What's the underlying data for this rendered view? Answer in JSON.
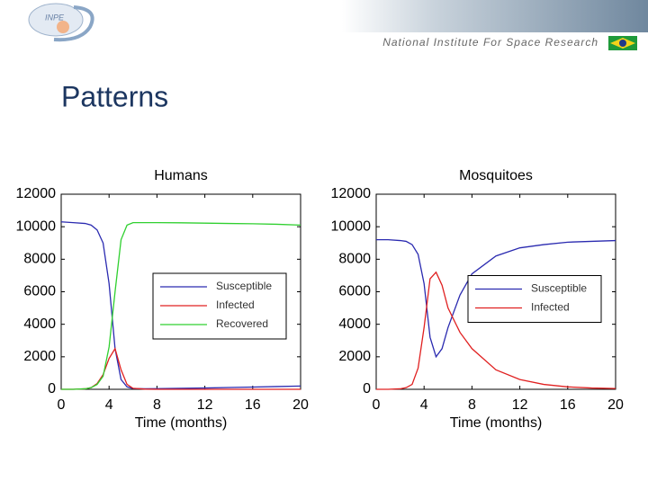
{
  "header": {
    "logo_text": "INPE",
    "institute": "National Institute For Space Research",
    "title": "Patterns"
  },
  "chart_data": [
    {
      "type": "line",
      "title": "Humans",
      "x_label": "Time (months)",
      "x": [
        0,
        1,
        2,
        2.5,
        3,
        3.5,
        4,
        4.5,
        5,
        5.5,
        6,
        7,
        8,
        10,
        12,
        14,
        16,
        18,
        20
      ],
      "series": [
        {
          "name": "Susceptible",
          "color": "#2a2ab0",
          "values": [
            10300,
            10250,
            10200,
            10100,
            9800,
            9000,
            6500,
            2500,
            600,
            150,
            50,
            30,
            40,
            60,
            80,
            110,
            140,
            170,
            200
          ]
        },
        {
          "name": "Infected",
          "color": "#e02020",
          "values": [
            0,
            0,
            30,
            100,
            350,
            900,
            1900,
            2500,
            1200,
            300,
            60,
            10,
            0,
            0,
            0,
            0,
            0,
            0,
            0
          ]
        },
        {
          "name": "Recovered",
          "color": "#30d030",
          "values": [
            0,
            0,
            30,
            100,
            300,
            800,
            2600,
            6000,
            9200,
            10100,
            10250,
            10250,
            10250,
            10240,
            10220,
            10200,
            10180,
            10150,
            10100
          ]
        }
      ],
      "xlim": [
        0,
        20
      ],
      "xticks": [
        0,
        4,
        8,
        12,
        16,
        20
      ],
      "ylim": [
        0,
        12000
      ],
      "yticks": [
        0,
        2000,
        4000,
        6000,
        8000,
        10000,
        12000
      ],
      "grid": false,
      "legend": "lower right"
    },
    {
      "type": "line",
      "title": "Mosquitoes",
      "x_label": "Time (months)",
      "x": [
        0,
        1,
        2,
        2.5,
        3,
        3.5,
        4,
        4.5,
        5,
        5.5,
        6,
        7,
        8,
        10,
        12,
        14,
        16,
        18,
        20
      ],
      "series": [
        {
          "name": "Susceptible",
          "color": "#2a2ab0",
          "values": [
            9200,
            9200,
            9150,
            9100,
            8900,
            8300,
            6500,
            3200,
            2000,
            2500,
            3800,
            5800,
            7100,
            8200,
            8700,
            8900,
            9050,
            9100,
            9150
          ]
        },
        {
          "name": "Infected",
          "color": "#e02020",
          "values": [
            0,
            0,
            30,
            100,
            300,
            1300,
            3800,
            6800,
            7200,
            6400,
            5000,
            3500,
            2500,
            1200,
            600,
            300,
            150,
            80,
            50
          ]
        }
      ],
      "xlim": [
        0,
        20
      ],
      "xticks": [
        0,
        4,
        8,
        12,
        16,
        20
      ],
      "ylim": [
        0,
        12000
      ],
      "yticks": [
        0,
        2000,
        4000,
        6000,
        8000,
        10000,
        12000
      ],
      "grid": false,
      "legend": "center right"
    }
  ]
}
